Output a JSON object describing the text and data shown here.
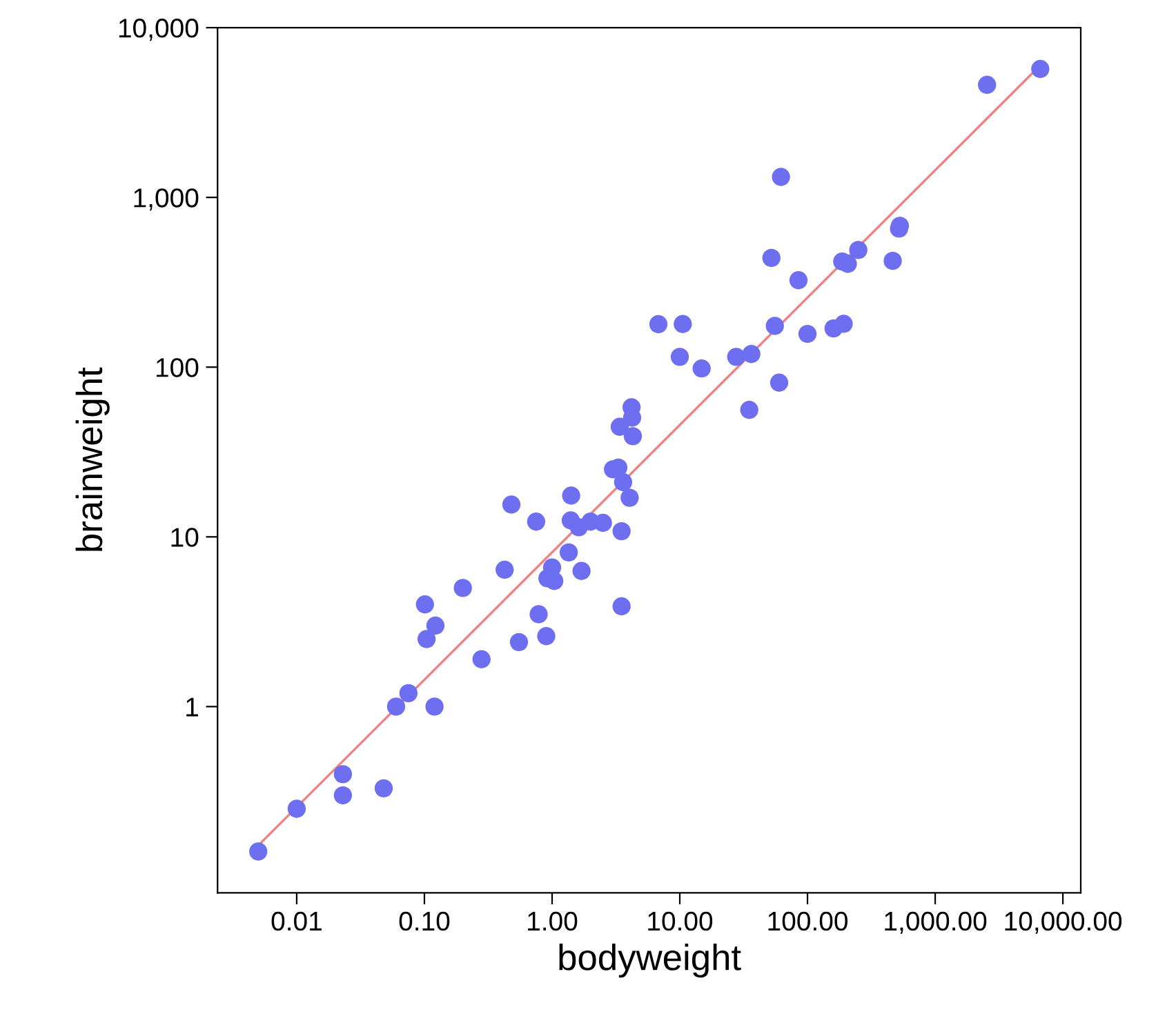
{
  "chart_data": {
    "type": "scatter",
    "xlabel": "bodyweight",
    "ylabel": "brainweight",
    "log": "xy",
    "grid": false,
    "legend": false,
    "xlim": [
      0.0024,
      13800
    ],
    "ylim": [
      0.08,
      10000
    ],
    "xticks": [
      {
        "value": 0.01,
        "label": "0.01"
      },
      {
        "value": 0.1,
        "label": "0.10"
      },
      {
        "value": 1,
        "label": "1.00"
      },
      {
        "value": 10,
        "label": "10.00"
      },
      {
        "value": 100,
        "label": "100.00"
      },
      {
        "value": 1000,
        "label": "1,000.00"
      },
      {
        "value": 10000,
        "label": "10,000.00"
      }
    ],
    "yticks": [
      1,
      10,
      100,
      {
        "value": 1000,
        "label": "1,000"
      },
      {
        "value": 10000,
        "label": "10,000"
      }
    ],
    "series": [
      {
        "color": "#6e6ef0",
        "marker": "circle",
        "x": [
          3.385,
          0.48,
          1.35,
          465,
          36.33,
          27.66,
          14.83,
          1.04,
          4.19,
          0.425,
          0.101,
          0.92,
          1,
          0.005,
          0.06,
          3.5,
          2,
          1.7,
          2547,
          0.023,
          187.1,
          521,
          0.785,
          10,
          3.3,
          0.2,
          1.41,
          529,
          207,
          85,
          0.75,
          62,
          6654,
          3.5,
          6.8,
          35,
          4.05,
          0.12,
          0.023,
          0.01,
          1.4,
          250,
          2.5,
          55.5,
          100,
          52.16,
          10.55,
          0.55,
          60,
          3.6,
          4.288,
          0.28,
          0.075,
          0.122,
          0.048,
          192,
          3,
          160,
          0.9,
          1.62,
          0.104,
          4.235
        ],
        "values": [
          44.5,
          15.5,
          8.1,
          423,
          119.5,
          115,
          98.2,
          5.5,
          58,
          6.4,
          4,
          5.7,
          6.6,
          0.14,
          1,
          10.8,
          12.3,
          6.3,
          4603,
          0.3,
          419,
          655,
          3.5,
          115,
          25.6,
          5,
          17.5,
          680,
          406,
          325,
          12.3,
          1320,
          5712,
          3.9,
          179,
          56,
          17,
          1,
          0.4,
          0.25,
          12.5,
          490,
          12.1,
          175,
          157,
          440,
          179.5,
          2.4,
          81,
          21,
          39.2,
          1.9,
          1.2,
          3,
          0.33,
          180,
          25,
          169,
          2.6,
          11.4,
          2.5,
          50.4
        ]
      },
      {
        "type": "line",
        "color": "#f08080",
        "line_style": "solid",
        "marker": "none",
        "x": [
          0.0047,
          6654
        ],
        "values": [
          0.145,
          6000
        ]
      }
    ]
  }
}
